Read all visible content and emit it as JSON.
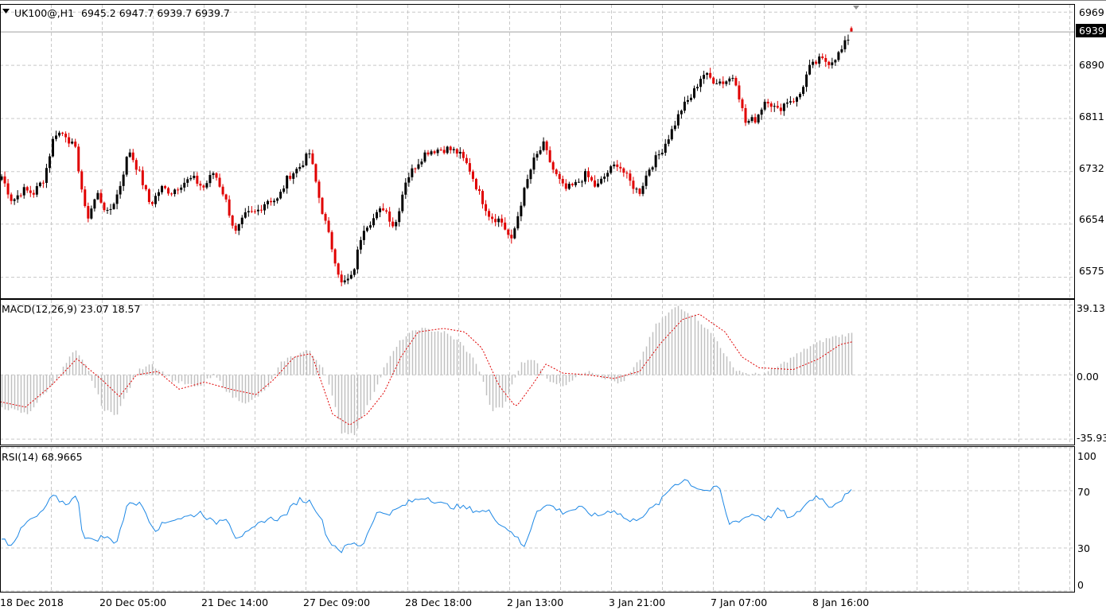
{
  "colors": {
    "background": "#ffffff",
    "grid": "#c8c8c8",
    "bull_candle": "#000000",
    "bear_candle": "#e00000",
    "macd_hist": "#c0c0c0",
    "macd_signal": "#e00000",
    "rsi_line": "#1e88e5",
    "price_tag_bg": "#000000",
    "price_tag_fg": "#ffffff"
  },
  "main_chart": {
    "symbol_info": "UK100@,H1",
    "ohlc_info": "6945.2 6947.7 6939.7 6939.7",
    "expand_icon": "triangle-down-icon"
  },
  "price_axis": {
    "ticks": [
      "6969",
      "6890",
      "6811",
      "6732",
      "6654",
      "6575"
    ],
    "current_price_tag": "6939"
  },
  "macd_panel": {
    "label": "MACD(12,26,9) 23.07 18.57",
    "ticks": [
      "39.13",
      "0.00",
      "-35.93"
    ]
  },
  "rsi_panel": {
    "label": "RSI(14) 68.9665",
    "ticks": [
      "100",
      "70",
      "30",
      "0"
    ]
  },
  "time_axis": {
    "labels": [
      "18 Dec 2018",
      "20 Dec 05:00",
      "21 Dec 14:00",
      "27 Dec 09:00",
      "28 Dec 18:00",
      "2 Jan 13:00",
      "3 Jan 21:00",
      "7 Jan 07:00",
      "8 Jan 16:00"
    ]
  },
  "chart_data": [
    {
      "type": "candlestick",
      "title": "UK100@,H1",
      "ylim": [
        6545,
        6980
      ],
      "yticks": [
        6969,
        6890,
        6811,
        6732,
        6654,
        6575
      ],
      "x_labels": [
        "18 Dec 2018",
        "20 Dec 05:00",
        "21 Dec 14:00",
        "27 Dec 09:00",
        "28 Dec 18:00",
        "2 Jan 13:00",
        "3 Jan 21:00",
        "7 Jan 07:00",
        "8 Jan 16:00"
      ],
      "close_path": [
        6725,
        6688,
        6705,
        6700,
        6722,
        6790,
        6788,
        6762,
        6660,
        6700,
        6668,
        6702,
        6765,
        6728,
        6682,
        6708,
        6702,
        6715,
        6722,
        6708,
        6732,
        6695,
        6640,
        6668,
        6672,
        6690,
        6690,
        6725,
        6738,
        6760,
        6685,
        6625,
        6565,
        6575,
        6648,
        6662,
        6680,
        6648,
        6718,
        6742,
        6762,
        6765,
        6766,
        6760,
        6738,
        6698,
        6665,
        6660,
        6628,
        6692,
        6745,
        6772,
        6732,
        6705,
        6712,
        6728,
        6708,
        6730,
        6745,
        6720,
        6700,
        6738,
        6760,
        6790,
        6825,
        6845,
        6878,
        6868,
        6865,
        6875,
        6805,
        6810,
        6842,
        6822,
        6838,
        6840,
        6885,
        6898,
        6895,
        6910,
        6939.7
      ],
      "last_candle": {
        "open": 6945.2,
        "high": 6947.7,
        "low": 6939.7,
        "close": 6939.7
      }
    },
    {
      "type": "histogram+line",
      "title": "MACD(12,26,9)",
      "ylim": [
        -39,
        42
      ],
      "yticks": [
        39.13,
        0.0,
        -35.93
      ],
      "histogram_keypoints": [
        [
          0,
          -18
        ],
        [
          0.03,
          -22
        ],
        [
          0.06,
          -5
        ],
        [
          0.085,
          14
        ],
        [
          0.1,
          4
        ],
        [
          0.12,
          -20
        ],
        [
          0.135,
          -22
        ],
        [
          0.16,
          2
        ],
        [
          0.175,
          7
        ],
        [
          0.2,
          -3
        ],
        [
          0.23,
          -7
        ],
        [
          0.25,
          0
        ],
        [
          0.27,
          -12
        ],
        [
          0.29,
          -16
        ],
        [
          0.31,
          -9
        ],
        [
          0.33,
          8
        ],
        [
          0.36,
          14
        ],
        [
          0.38,
          3
        ],
        [
          0.4,
          -32
        ],
        [
          0.415,
          -33
        ],
        [
          0.43,
          -18
        ],
        [
          0.45,
          5
        ],
        [
          0.47,
          20
        ],
        [
          0.49,
          26
        ],
        [
          0.52,
          24
        ],
        [
          0.54,
          18
        ],
        [
          0.56,
          6
        ],
        [
          0.575,
          -20
        ],
        [
          0.59,
          -18
        ],
        [
          0.61,
          6
        ],
        [
          0.625,
          10
        ],
        [
          0.64,
          -2
        ],
        [
          0.66,
          -6
        ],
        [
          0.69,
          3
        ],
        [
          0.71,
          -2
        ],
        [
          0.73,
          -5
        ],
        [
          0.75,
          8
        ],
        [
          0.77,
          28
        ],
        [
          0.795,
          39
        ],
        [
          0.815,
          33
        ],
        [
          0.84,
          20
        ],
        [
          0.86,
          4
        ],
        [
          0.88,
          0
        ],
        [
          0.9,
          1
        ],
        [
          0.925,
          8
        ],
        [
          0.95,
          16
        ],
        [
          0.975,
          21
        ],
        [
          1,
          23.07
        ]
      ],
      "signal_keypoints": [
        [
          0,
          -15
        ],
        [
          0.03,
          -18
        ],
        [
          0.06,
          -6
        ],
        [
          0.09,
          9
        ],
        [
          0.12,
          -3
        ],
        [
          0.14,
          -12
        ],
        [
          0.16,
          0
        ],
        [
          0.185,
          2
        ],
        [
          0.21,
          -8
        ],
        [
          0.24,
          -4
        ],
        [
          0.27,
          -8
        ],
        [
          0.3,
          -11
        ],
        [
          0.32,
          -3
        ],
        [
          0.345,
          10
        ],
        [
          0.365,
          12
        ],
        [
          0.39,
          -22
        ],
        [
          0.41,
          -28
        ],
        [
          0.43,
          -22
        ],
        [
          0.45,
          -10
        ],
        [
          0.47,
          10
        ],
        [
          0.49,
          24
        ],
        [
          0.52,
          26
        ],
        [
          0.545,
          24
        ],
        [
          0.565,
          15
        ],
        [
          0.585,
          -6
        ],
        [
          0.605,
          -18
        ],
        [
          0.625,
          -5
        ],
        [
          0.64,
          6
        ],
        [
          0.66,
          1
        ],
        [
          0.69,
          0
        ],
        [
          0.72,
          -2
        ],
        [
          0.75,
          2
        ],
        [
          0.775,
          18
        ],
        [
          0.8,
          31
        ],
        [
          0.82,
          34
        ],
        [
          0.85,
          24
        ],
        [
          0.87,
          10
        ],
        [
          0.89,
          4
        ],
        [
          0.93,
          3
        ],
        [
          0.96,
          9
        ],
        [
          0.985,
          17
        ],
        [
          1,
          18.57
        ]
      ],
      "last_values": {
        "macd": 23.07,
        "signal": 18.57
      }
    },
    {
      "type": "line",
      "title": "RSI(14)",
      "ylim": [
        0,
        100
      ],
      "yticks": [
        100,
        70,
        30,
        0
      ],
      "keypoints": [
        [
          0,
          38
        ],
        [
          0.01,
          32
        ],
        [
          0.03,
          48
        ],
        [
          0.045,
          53
        ],
        [
          0.06,
          66
        ],
        [
          0.075,
          61
        ],
        [
          0.09,
          66
        ],
        [
          0.095,
          40
        ],
        [
          0.105,
          35
        ],
        [
          0.12,
          38
        ],
        [
          0.135,
          34
        ],
        [
          0.15,
          63
        ],
        [
          0.165,
          60
        ],
        [
          0.18,
          43
        ],
        [
          0.2,
          50
        ],
        [
          0.22,
          52
        ],
        [
          0.235,
          55
        ],
        [
          0.25,
          47
        ],
        [
          0.265,
          52
        ],
        [
          0.275,
          38
        ],
        [
          0.29,
          40
        ],
        [
          0.31,
          50
        ],
        [
          0.33,
          51
        ],
        [
          0.35,
          64
        ],
        [
          0.365,
          62
        ],
        [
          0.375,
          52
        ],
        [
          0.385,
          35
        ],
        [
          0.4,
          28
        ],
        [
          0.41,
          33
        ],
        [
          0.425,
          32
        ],
        [
          0.44,
          54
        ],
        [
          0.46,
          55
        ],
        [
          0.48,
          62
        ],
        [
          0.5,
          66
        ],
        [
          0.52,
          60
        ],
        [
          0.545,
          58
        ],
        [
          0.56,
          56
        ],
        [
          0.575,
          55
        ],
        [
          0.59,
          45
        ],
        [
          0.6,
          42
        ],
        [
          0.615,
          30
        ],
        [
          0.63,
          57
        ],
        [
          0.645,
          60
        ],
        [
          0.66,
          55
        ],
        [
          0.68,
          58
        ],
        [
          0.7,
          52
        ],
        [
          0.72,
          57
        ],
        [
          0.74,
          48
        ],
        [
          0.76,
          55
        ],
        [
          0.775,
          62
        ],
        [
          0.79,
          74
        ],
        [
          0.805,
          78
        ],
        [
          0.815,
          73
        ],
        [
          0.83,
          70
        ],
        [
          0.845,
          72
        ],
        [
          0.855,
          47
        ],
        [
          0.87,
          50
        ],
        [
          0.885,
          54
        ],
        [
          0.9,
          50
        ],
        [
          0.915,
          57
        ],
        [
          0.93,
          50
        ],
        [
          0.945,
          60
        ],
        [
          0.96,
          67
        ],
        [
          0.975,
          59
        ],
        [
          0.99,
          65
        ],
        [
          1,
          68.97
        ]
      ],
      "last_value": 68.9665
    }
  ]
}
